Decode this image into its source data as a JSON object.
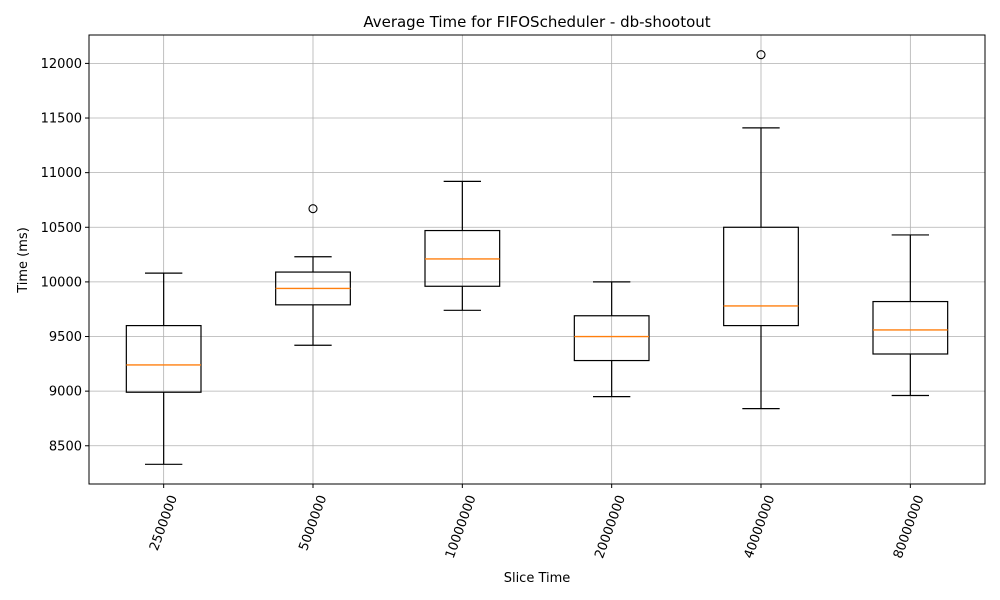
{
  "chart_data": {
    "type": "box",
    "title": "Average Time for FIFOScheduler - db-shootout",
    "xlabel": "Slice Time",
    "ylabel": "Time (ms)",
    "ylim": [
      8150,
      12260
    ],
    "yticks": [
      8500,
      9000,
      9500,
      10000,
      10500,
      11000,
      11500,
      12000
    ],
    "categories": [
      "2500000",
      "5000000",
      "10000000",
      "20000000",
      "40000000",
      "80000000"
    ],
    "boxes": [
      {
        "whisker_low": 8330,
        "q1": 8990,
        "median": 9240,
        "q3": 9600,
        "whisker_high": 10080,
        "outliers": []
      },
      {
        "whisker_low": 9420,
        "q1": 9790,
        "median": 9940,
        "q3": 10090,
        "whisker_high": 10230,
        "outliers": [
          10670
        ]
      },
      {
        "whisker_low": 9740,
        "q1": 9960,
        "median": 10210,
        "q3": 10470,
        "whisker_high": 10920,
        "outliers": []
      },
      {
        "whisker_low": 8950,
        "q1": 9280,
        "median": 9500,
        "q3": 9690,
        "whisker_high": 10000,
        "outliers": []
      },
      {
        "whisker_low": 8840,
        "q1": 9600,
        "median": 9780,
        "q3": 10500,
        "whisker_high": 11410,
        "outliers": [
          12080
        ]
      },
      {
        "whisker_low": 8960,
        "q1": 9340,
        "median": 9560,
        "q3": 9820,
        "whisker_high": 10430,
        "outliers": []
      }
    ],
    "grid": true,
    "colors": {
      "box": "#000000",
      "median": "#ff7f0e",
      "grid": "#b0b0b0"
    },
    "xtick_rotation": 70
  }
}
